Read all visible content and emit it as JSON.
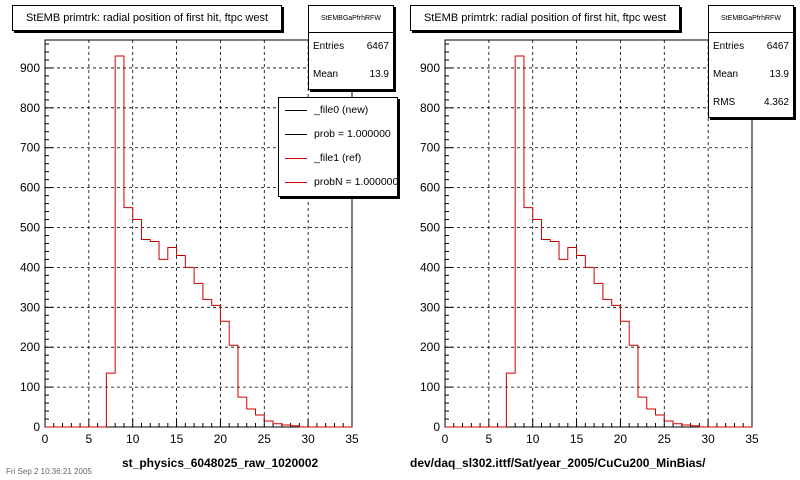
{
  "colors": {
    "ref_line": "#cc0000",
    "new_line": "#000000",
    "grid": "#000000"
  },
  "pads": [
    {
      "title": "StEMB primtrk: radial position of first hit, ftpc west",
      "stats": {
        "name": "StEMBGaPfrhRFW",
        "rows": [
          {
            "label": "Entries",
            "value": "6467"
          },
          {
            "label": "Mean",
            "value": "13.9"
          }
        ]
      },
      "legend": [
        {
          "label": "_file0 (new)",
          "color": "#000000"
        },
        {
          "label": "prob = 1.000000",
          "color": "#000000"
        },
        {
          "label": "_file1 (ref)",
          "color": "#cc0000"
        },
        {
          "label": "probN = 1.000000",
          "color": "#cc0000"
        }
      ],
      "xtitle": "st_physics_6048025_raw_1020002"
    },
    {
      "title": "StEMB primtrk: radial position of first hit, ftpc west",
      "stats": {
        "name": "StEMBGaPfrhRFW",
        "rows": [
          {
            "label": "Entries",
            "value": "6467"
          },
          {
            "label": "Mean",
            "value": "13.9"
          },
          {
            "label": "RMS",
            "value": "4.362"
          }
        ]
      },
      "xtitle": "dev/daq_sl302.ittf/Sat/year_2005/CuCu200_MinBias/"
    }
  ],
  "footer": "Fri Sep 2 10:36:21 2005",
  "chart_data": [
    {
      "type": "histogram",
      "title": "StEMB primtrk: radial position of first hit, ftpc west",
      "xlabel": "st_physics_6048025_raw_1020002",
      "xlim": [
        0,
        35
      ],
      "ylim": [
        0,
        970
      ],
      "xticks": [
        0,
        5,
        10,
        15,
        20,
        25,
        30,
        35
      ],
      "yticks": [
        0,
        100,
        200,
        300,
        400,
        500,
        600,
        700,
        800,
        900
      ],
      "grid": true,
      "bins": {
        "start": 0,
        "width": 1
      },
      "series": [
        {
          "name": "_file1 (ref)",
          "values": [
            0,
            0,
            0,
            0,
            0,
            0,
            0,
            135,
            930,
            550,
            520,
            470,
            465,
            420,
            450,
            430,
            400,
            360,
            320,
            305,
            265,
            205,
            75,
            45,
            30,
            15,
            8,
            5,
            3,
            0,
            0,
            0,
            0,
            0,
            0
          ]
        }
      ]
    },
    {
      "type": "histogram",
      "title": "StEMB primtrk: radial position of first hit, ftpc west",
      "xlabel": "dev/daq_sl302.ittf/Sat/year_2005/CuCu200_MinBias/",
      "xlim": [
        0,
        35
      ],
      "ylim": [
        0,
        970
      ],
      "xticks": [
        0,
        5,
        10,
        15,
        20,
        25,
        30,
        35
      ],
      "yticks": [
        0,
        100,
        200,
        300,
        400,
        500,
        600,
        700,
        800,
        900
      ],
      "grid": true,
      "bins": {
        "start": 0,
        "width": 1
      },
      "series": [
        {
          "name": "",
          "values": [
            0,
            0,
            0,
            0,
            0,
            0,
            0,
            135,
            930,
            550,
            520,
            470,
            465,
            420,
            450,
            430,
            400,
            360,
            320,
            305,
            265,
            205,
            75,
            45,
            30,
            15,
            8,
            5,
            3,
            0,
            0,
            0,
            0,
            0,
            0
          ]
        }
      ]
    }
  ]
}
